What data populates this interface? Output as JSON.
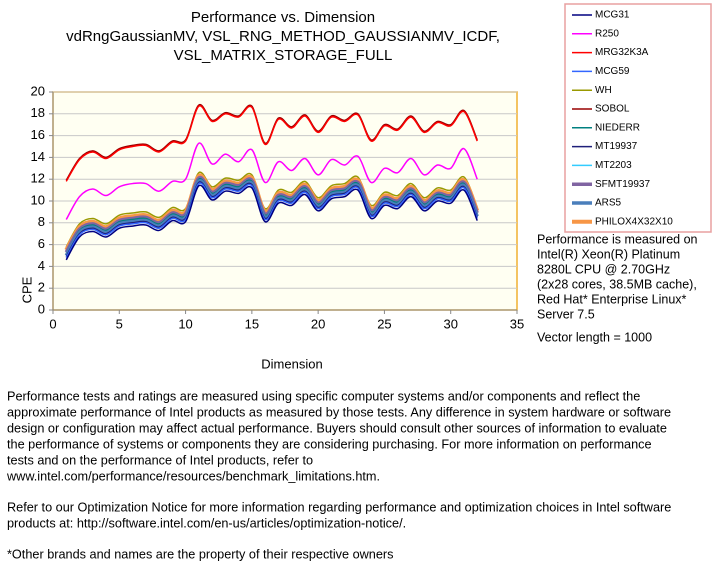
{
  "chart_data": {
    "type": "line",
    "title": [
      "Performance vs. Dimension",
      "vdRngGaussianMV,  VSL_RNG_METHOD_GAUSSIANMV_ICDF,",
      "VSL_MATRIX_STORAGE_FULL"
    ],
    "x_label": "Dimension",
    "y_label": "CPE",
    "xlim": [
      0,
      35
    ],
    "xticks": [
      0,
      5,
      10,
      15,
      20,
      25,
      30,
      35
    ],
    "ylim": [
      0,
      20
    ],
    "yticks": [
      0,
      2,
      4,
      6,
      8,
      10,
      12,
      14,
      16,
      18,
      20
    ],
    "grid": true,
    "legend": "right",
    "x": [
      1,
      2,
      3,
      4,
      5,
      6,
      7,
      8,
      9,
      10,
      11,
      12,
      13,
      14,
      15,
      16,
      17,
      18,
      19,
      20,
      21,
      22,
      23,
      24,
      25,
      26,
      27,
      28,
      29,
      30,
      31,
      32
    ],
    "series": [
      {
        "name": "MCG31",
        "color": "#000080",
        "width": 1.5,
        "values": [
          4.6,
          6.7,
          7.2,
          6.7,
          7.5,
          7.7,
          7.8,
          7.3,
          8.2,
          8.1,
          11.4,
          10.1,
          10.9,
          10.7,
          11.2,
          8.1,
          9.8,
          9.6,
          10.6,
          9.1,
          10.2,
          10.4,
          11.0,
          8.4,
          9.6,
          9.3,
          10.4,
          9.1,
          10.0,
          9.8,
          11.0,
          8.2
        ]
      },
      {
        "name": "R250",
        "color": "#ff00ff",
        "width": 1.5,
        "values": [
          8.3,
          10.4,
          11.1,
          10.5,
          11.3,
          11.6,
          11.6,
          10.9,
          11.8,
          12.0,
          15.3,
          13.4,
          14.3,
          13.6,
          14.7,
          11.7,
          13.6,
          12.8,
          13.9,
          12.4,
          13.8,
          13.3,
          14.1,
          11.7,
          13.0,
          12.6,
          13.9,
          12.4,
          13.3,
          13.0,
          14.8,
          12.0
        ]
      },
      {
        "name": "MRG32K3A",
        "color": "#ff0000",
        "width": 1.5,
        "values": [
          11.8,
          13.8,
          14.5,
          13.9,
          14.7,
          15.0,
          15.1,
          14.5,
          15.4,
          15.5,
          18.7,
          17.3,
          18.0,
          17.7,
          18.6,
          15.2,
          17.5,
          16.7,
          17.8,
          16.3,
          17.7,
          17.3,
          17.9,
          15.5,
          16.9,
          16.5,
          17.7,
          16.3,
          17.2,
          16.9,
          18.2,
          15.5
        ]
      },
      {
        "name": "MCG59",
        "color": "#3366ff",
        "width": 1.5,
        "values": [
          4.8,
          6.9,
          7.4,
          6.9,
          7.7,
          7.9,
          8.0,
          7.5,
          8.4,
          8.3,
          11.6,
          10.3,
          11.1,
          10.9,
          11.4,
          8.3,
          10.0,
          9.8,
          10.8,
          9.3,
          10.4,
          10.6,
          11.2,
          8.6,
          9.8,
          9.5,
          10.6,
          9.3,
          10.2,
          10.0,
          11.2,
          8.4
        ]
      },
      {
        "name": "WH",
        "color": "#999900",
        "width": 1.5,
        "values": [
          5.8,
          7.9,
          8.4,
          7.9,
          8.7,
          8.9,
          9.0,
          8.5,
          9.4,
          9.3,
          12.6,
          11.3,
          12.1,
          11.9,
          12.4,
          9.3,
          11.0,
          10.8,
          11.8,
          10.3,
          11.4,
          11.6,
          12.2,
          9.6,
          10.8,
          10.5,
          11.6,
          10.3,
          11.2,
          11.0,
          12.2,
          9.4
        ]
      },
      {
        "name": "SOBOL",
        "color": "#990000",
        "width": 1.5,
        "values": [
          11.9,
          13.9,
          14.6,
          14.0,
          14.8,
          15.1,
          15.2,
          14.6,
          15.5,
          15.6,
          18.8,
          17.4,
          18.1,
          17.8,
          18.7,
          15.3,
          17.6,
          16.8,
          17.9,
          16.4,
          17.8,
          17.4,
          18.0,
          15.6,
          17.0,
          16.6,
          17.8,
          16.4,
          17.3,
          17.0,
          18.3,
          15.6
        ]
      },
      {
        "name": "NIEDERR",
        "color": "#008080",
        "width": 1.5,
        "values": [
          5.2,
          7.3,
          7.8,
          7.3,
          8.1,
          8.3,
          8.4,
          7.9,
          8.8,
          8.7,
          12.0,
          10.7,
          11.5,
          11.3,
          11.8,
          8.7,
          10.4,
          10.2,
          11.2,
          9.7,
          10.8,
          11.0,
          11.6,
          9.0,
          10.2,
          9.9,
          11.0,
          9.7,
          10.6,
          10.4,
          11.6,
          8.8
        ]
      },
      {
        "name": "MT19937",
        "color": "#1f1f7a",
        "width": 1.5,
        "values": [
          4.9,
          7.0,
          7.5,
          7.0,
          7.8,
          8.0,
          8.1,
          7.6,
          8.5,
          8.4,
          11.7,
          10.4,
          11.2,
          11.0,
          11.5,
          8.4,
          10.1,
          9.9,
          10.9,
          9.4,
          10.5,
          10.7,
          11.3,
          8.7,
          9.9,
          9.6,
          10.7,
          9.4,
          10.3,
          10.1,
          11.3,
          8.5
        ]
      },
      {
        "name": "MT2203",
        "color": "#33ccff",
        "width": 1.5,
        "values": [
          5.0,
          7.1,
          7.6,
          7.1,
          7.9,
          8.1,
          8.2,
          7.7,
          8.6,
          8.5,
          11.8,
          10.5,
          11.3,
          11.1,
          11.6,
          8.5,
          10.2,
          10.0,
          11.0,
          9.5,
          10.6,
          10.8,
          11.4,
          8.8,
          10.0,
          9.7,
          10.8,
          9.5,
          10.4,
          10.2,
          11.4,
          8.6
        ]
      },
      {
        "name": "SFMT19937",
        "color": "#8064a2",
        "width": 3.5,
        "values": [
          5.3,
          7.4,
          7.9,
          7.4,
          8.2,
          8.4,
          8.5,
          8.0,
          8.9,
          8.8,
          12.1,
          10.8,
          11.6,
          11.4,
          11.9,
          8.8,
          10.5,
          10.3,
          11.3,
          9.8,
          10.9,
          11.1,
          11.7,
          9.1,
          10.3,
          10.0,
          11.1,
          9.8,
          10.7,
          10.5,
          11.7,
          8.9
        ]
      },
      {
        "name": "ARS5",
        "color": "#4a7ebb",
        "width": 3.5,
        "values": [
          5.0,
          7.1,
          7.6,
          7.1,
          7.9,
          8.1,
          8.2,
          7.7,
          8.6,
          8.5,
          11.8,
          10.5,
          11.3,
          11.1,
          11.6,
          8.5,
          10.2,
          10.0,
          11.0,
          9.5,
          10.6,
          10.8,
          11.4,
          8.8,
          10.0,
          9.7,
          10.8,
          9.5,
          10.4,
          10.2,
          11.4,
          8.6
        ]
      },
      {
        "name": "PHILOX4X32X10",
        "color": "#f79646",
        "width": 4,
        "values": [
          5.5,
          7.6,
          8.1,
          7.6,
          8.4,
          8.6,
          8.7,
          8.2,
          9.1,
          9.0,
          12.3,
          11.0,
          11.8,
          11.6,
          12.1,
          9.0,
          10.7,
          10.5,
          11.5,
          10.0,
          11.1,
          11.3,
          11.9,
          9.3,
          10.5,
          10.2,
          11.3,
          10.0,
          10.9,
          10.7,
          11.9,
          9.1
        ]
      }
    ],
    "annotation": [
      "Performance is measured on",
      "Intel(R) Xeon(R) Platinum",
      "8280L CPU @ 2.70GHz",
      "(2x28 cores, 38.5MB cache),",
      "Red Hat* Enterprise Linux*",
      "Server 7.5",
      "",
      "Vector length = 1000"
    ]
  },
  "footer": [
    [
      "Performance tests and ratings are measured using specific computer systems and/or components and reflect the",
      "approximate performance of Intel products as measured by those tests. Any difference in system hardware or software",
      "design or configuration may affect actual performance. Buyers should consult other sources of information to evaluate",
      "the performance of systems or components they are considering purchasing. For more information on performance",
      "tests and on the performance of Intel products, refer to",
      "www.intel.com/performance/resources/benchmark_limitations.htm."
    ],
    [
      "Refer to our Optimization Notice for more information regarding performance and optimization choices in Intel software",
      "products at: http://software.intel.com/en-us/articles/optimization-notice/."
    ],
    [
      "*Other brands and names are the property of their respective owners"
    ]
  ]
}
